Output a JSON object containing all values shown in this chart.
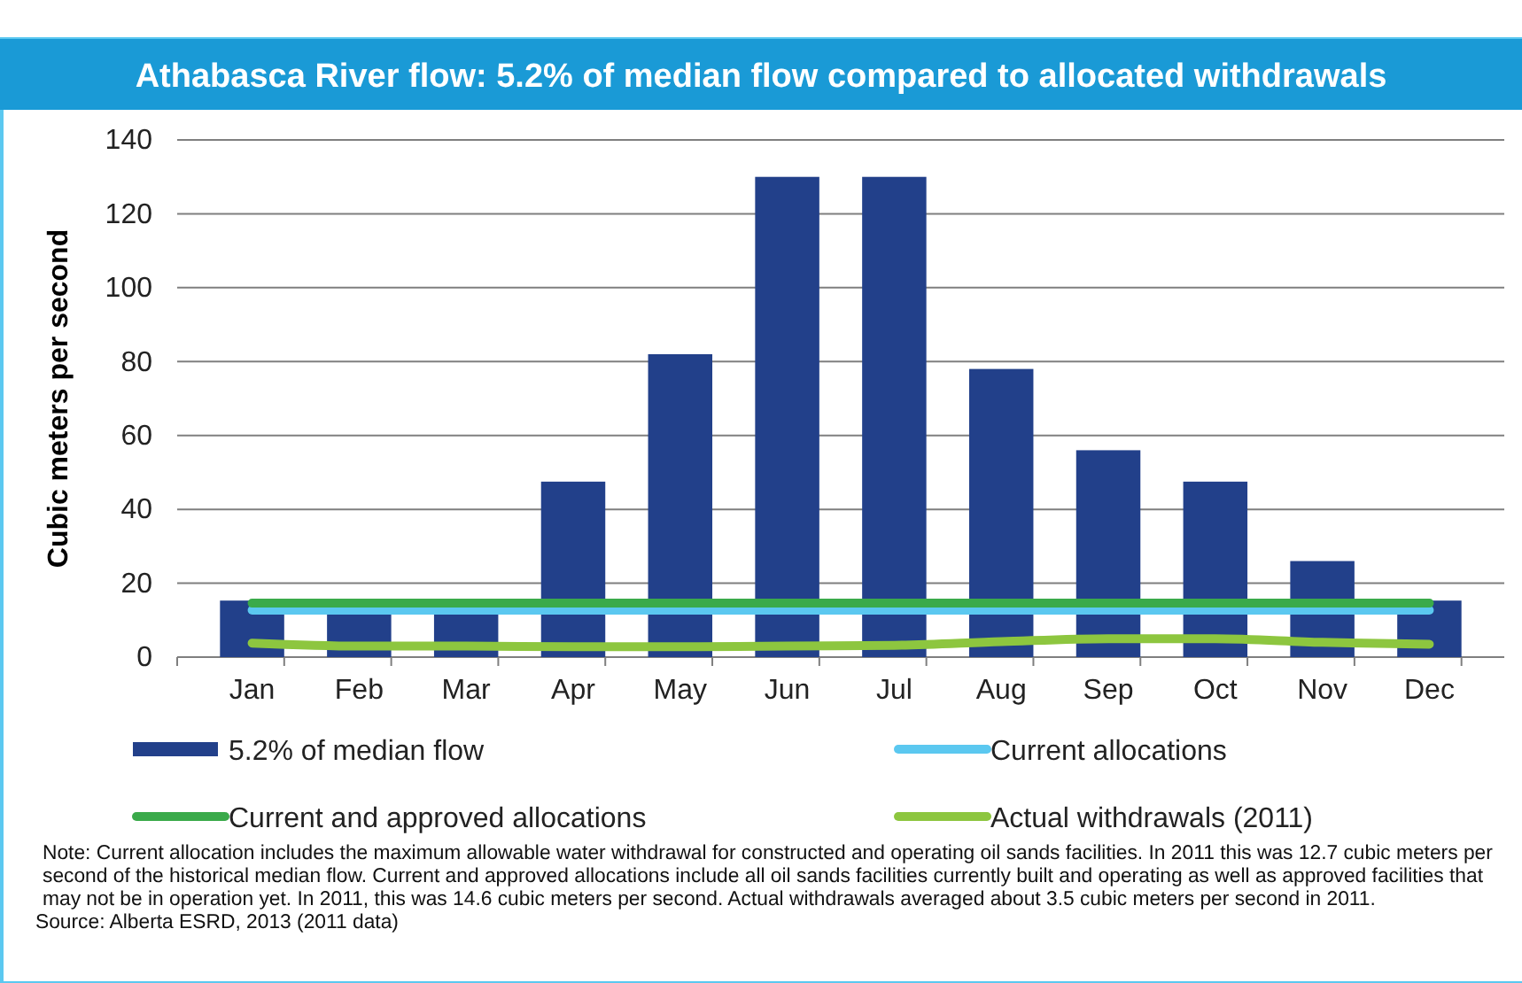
{
  "chart_data": {
    "type": "bar",
    "title": "Athabasca River flow: 5.2% of median flow compared to allocated withdrawals",
    "ylabel": "Cubic meters per second",
    "categories": [
      "Jan",
      "Feb",
      "Mar",
      "Apr",
      "May",
      "Jun",
      "Jul",
      "Aug",
      "Sep",
      "Oct",
      "Nov",
      "Dec"
    ],
    "series": [
      {
        "name": "5.2% of median flow",
        "color": "#22408a",
        "values": [
          15.3,
          13,
          13,
          47.5,
          82,
          130,
          130,
          78,
          56,
          47.5,
          26,
          15.3
        ]
      },
      {
        "name": "Current allocations",
        "type": "line",
        "color": "#5bc8f0",
        "values": [
          12.7,
          12.7,
          12.7,
          12.7,
          12.7,
          12.7,
          12.7,
          12.7,
          12.7,
          12.7,
          12.7,
          12.7
        ]
      },
      {
        "name": "Current and approved allocations",
        "type": "line",
        "color": "#3aaa4a",
        "values": [
          14.6,
          14.6,
          14.6,
          14.6,
          14.6,
          14.6,
          14.6,
          14.6,
          14.6,
          14.6,
          14.6,
          14.6
        ]
      },
      {
        "name": "Actual withdrawals (2011)",
        "type": "line",
        "color": "#8dc63f",
        "values": [
          3.8,
          3,
          3,
          2.8,
          2.8,
          3,
          3.2,
          4.2,
          5,
          5,
          4,
          3.5
        ]
      }
    ],
    "ylim": [
      0,
      140
    ],
    "yticks": [
      0,
      20,
      40,
      60,
      80,
      100,
      120,
      140
    ],
    "grid": "y",
    "legend": "bottom",
    "annotations": [
      "Note: Current allocation includes the maximum allowable water withdrawal for constructed and operating oil sands facilities. In 2011 this was 12.7 cubic meters per second of the historical median flow. Current and approved allocations include all oil sands facilities currently built and operating as well as approved facilities that may not be in operation yet. In 2011, this was 14.6 cubic meters per second. Actual withdrawals averaged about 3.5 cubic meters per second in 2011.",
      "Source: Alberta ESRD, 2013 (2011 data)"
    ]
  }
}
